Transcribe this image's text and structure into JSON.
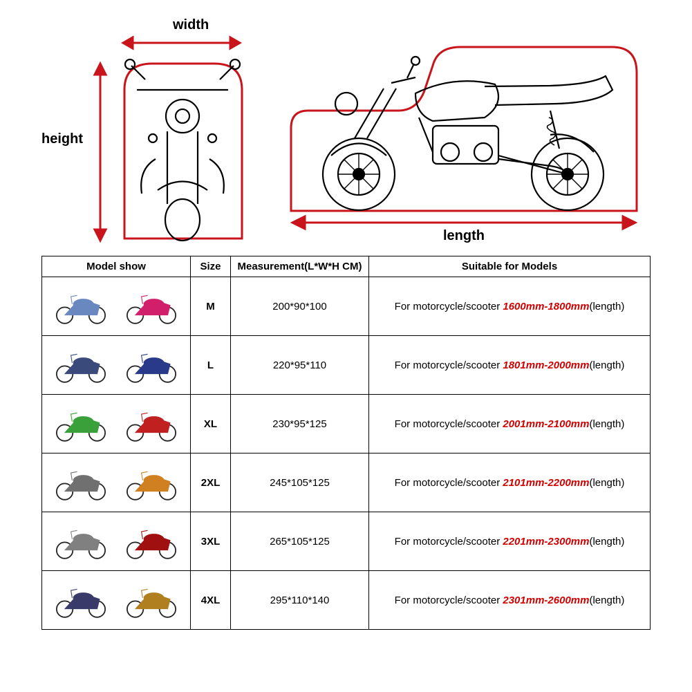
{
  "diagram": {
    "width_label": "width",
    "height_label": "height",
    "length_label": "length",
    "outline_color": "#c8151b",
    "line_color": "#000000",
    "arrow_color": "#c8151b"
  },
  "table": {
    "headers": {
      "model": "Model show",
      "size": "Size",
      "measurement": "Measurement(L*W*H CM)",
      "suitable": "Suitable for Models"
    },
    "suitable_prefix": "For motorcycle/scooter ",
    "suitable_suffix": "(length)",
    "range_color": "#d00000",
    "rows": [
      {
        "size": "M",
        "measurement": "200*90*100",
        "range": "1600mm-1800mm",
        "thumb_colors": [
          "#6a88c0",
          "#d21f6b"
        ]
      },
      {
        "size": "L",
        "measurement": "220*95*110",
        "range": "1801mm-2000mm",
        "thumb_colors": [
          "#3a4a7a",
          "#2a3a8a"
        ]
      },
      {
        "size": "XL",
        "measurement": "230*95*125",
        "range": "2001mm-2100mm",
        "thumb_colors": [
          "#3aa03a",
          "#c02020"
        ]
      },
      {
        "size": "2XL",
        "measurement": "245*105*125",
        "range": "2101mm-2200mm",
        "thumb_colors": [
          "#707070",
          "#d08020"
        ]
      },
      {
        "size": "3XL",
        "measurement": "265*105*125",
        "range": "2201mm-2300mm",
        "thumb_colors": [
          "#808080",
          "#a01010"
        ]
      },
      {
        "size": "4XL",
        "measurement": "295*110*140",
        "range": "2301mm-2600mm",
        "thumb_colors": [
          "#3a3a6a",
          "#b08020"
        ]
      }
    ]
  }
}
